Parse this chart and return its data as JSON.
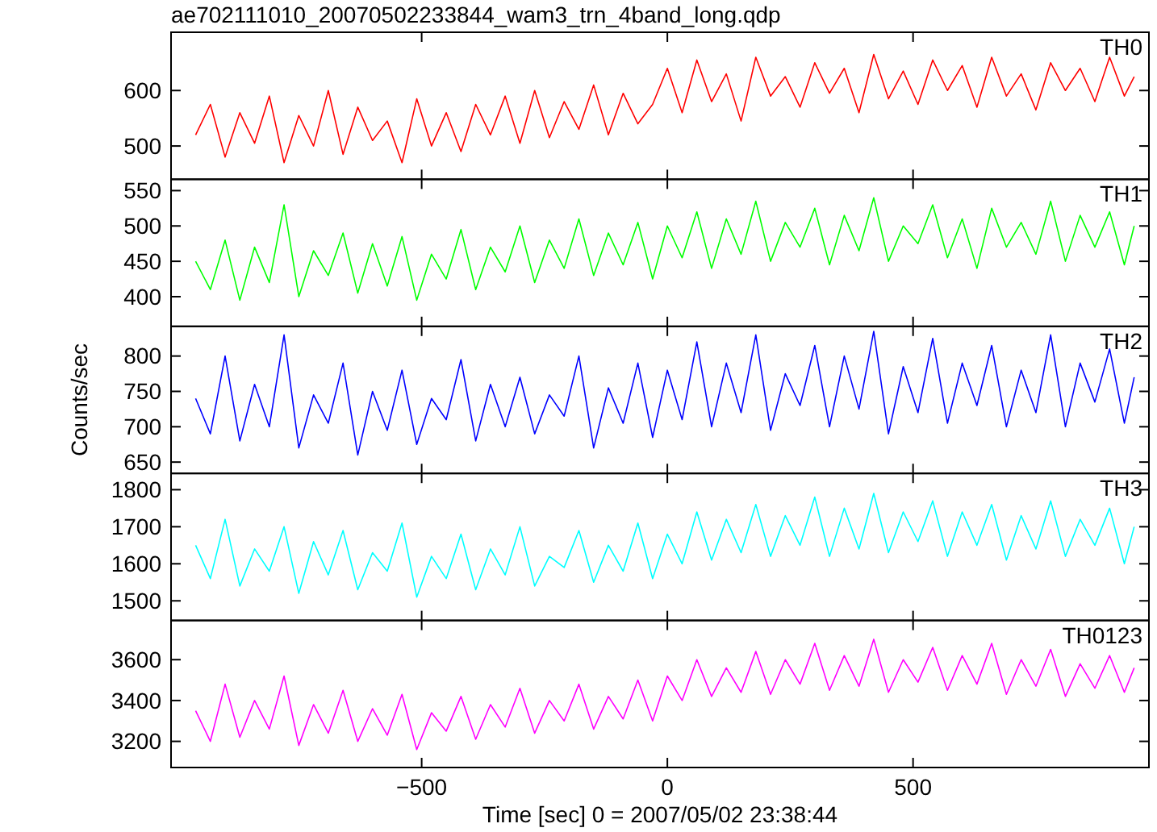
{
  "chart_data": [
    {
      "type": "line",
      "title": "ae702111010_20070502233844_wam3_trn_4band_long.qdp",
      "xlim": [
        -1010,
        980
      ],
      "xticks": [
        -500,
        0,
        500
      ],
      "ylim": [
        440,
        705
      ],
      "yticks": [
        500,
        600
      ],
      "tick_labels": "y",
      "legend": "top right",
      "grid": false,
      "x": [
        -960,
        -930,
        -900,
        -870,
        -840,
        -810,
        -780,
        -750,
        -720,
        -690,
        -660,
        -630,
        -600,
        -570,
        -540,
        -510,
        -480,
        -450,
        -420,
        -390,
        -360,
        -330,
        -300,
        -270,
        -240,
        -210,
        -180,
        -150,
        -120,
        -90,
        -60,
        -30,
        0,
        30,
        60,
        90,
        120,
        150,
        180,
        210,
        240,
        270,
        300,
        330,
        360,
        390,
        420,
        450,
        480,
        510,
        540,
        570,
        600,
        630,
        660,
        690,
        720,
        750,
        780,
        810,
        840,
        870,
        900,
        930,
        950
      ],
      "series": [
        {
          "name": "TH0",
          "color": "#ff0000",
          "values": [
            520,
            575,
            480,
            560,
            505,
            590,
            470,
            555,
            500,
            600,
            485,
            570,
            510,
            545,
            470,
            585,
            500,
            560,
            490,
            575,
            520,
            590,
            505,
            600,
            515,
            580,
            530,
            610,
            520,
            595,
            540,
            575,
            640,
            560,
            655,
            580,
            630,
            545,
            660,
            590,
            625,
            570,
            650,
            595,
            640,
            560,
            665,
            585,
            635,
            575,
            655,
            600,
            645,
            570,
            660,
            590,
            630,
            565,
            650,
            600,
            640,
            580,
            660,
            590,
            625
          ]
        }
      ]
    },
    {
      "type": "line",
      "xlim": [
        -1010,
        980
      ],
      "xticks": [
        -500,
        0,
        500
      ],
      "ylim": [
        358,
        566
      ],
      "yticks": [
        400,
        450,
        500,
        550
      ],
      "tick_labels": "y",
      "legend": "top right",
      "grid": false,
      "x": [
        -960,
        -930,
        -900,
        -870,
        -840,
        -810,
        -780,
        -750,
        -720,
        -690,
        -660,
        -630,
        -600,
        -570,
        -540,
        -510,
        -480,
        -450,
        -420,
        -390,
        -360,
        -330,
        -300,
        -270,
        -240,
        -210,
        -180,
        -150,
        -120,
        -90,
        -60,
        -30,
        0,
        30,
        60,
        90,
        120,
        150,
        180,
        210,
        240,
        270,
        300,
        330,
        360,
        390,
        420,
        450,
        480,
        510,
        540,
        570,
        600,
        630,
        660,
        690,
        720,
        750,
        780,
        810,
        840,
        870,
        900,
        930,
        950
      ],
      "series": [
        {
          "name": "TH1",
          "color": "#00ff00",
          "values": [
            450,
            410,
            480,
            395,
            470,
            420,
            530,
            400,
            465,
            430,
            490,
            405,
            475,
            415,
            485,
            395,
            460,
            425,
            495,
            410,
            470,
            435,
            500,
            420,
            480,
            440,
            510,
            430,
            490,
            445,
            505,
            425,
            500,
            455,
            520,
            440,
            510,
            460,
            535,
            450,
            505,
            470,
            525,
            445,
            515,
            465,
            540,
            450,
            500,
            475,
            530,
            455,
            510,
            440,
            525,
            470,
            505,
            460,
            535,
            450,
            515,
            470,
            520,
            445,
            500
          ]
        }
      ]
    },
    {
      "type": "line",
      "ylabel": "Counts/sec",
      "xlim": [
        -1010,
        980
      ],
      "xticks": [
        -500,
        0,
        500
      ],
      "ylim": [
        634,
        842
      ],
      "yticks": [
        650,
        700,
        750,
        800
      ],
      "tick_labels": "y",
      "legend": "top right",
      "grid": false,
      "x": [
        -960,
        -930,
        -900,
        -870,
        -840,
        -810,
        -780,
        -750,
        -720,
        -690,
        -660,
        -630,
        -600,
        -570,
        -540,
        -510,
        -480,
        -450,
        -420,
        -390,
        -360,
        -330,
        -300,
        -270,
        -240,
        -210,
        -180,
        -150,
        -120,
        -90,
        -60,
        -30,
        0,
        30,
        60,
        90,
        120,
        150,
        180,
        210,
        240,
        270,
        300,
        330,
        360,
        390,
        420,
        450,
        480,
        510,
        540,
        570,
        600,
        630,
        660,
        690,
        720,
        750,
        780,
        810,
        840,
        870,
        900,
        930,
        950
      ],
      "series": [
        {
          "name": "TH2",
          "color": "#0000ff",
          "values": [
            740,
            690,
            800,
            680,
            760,
            700,
            830,
            670,
            745,
            705,
            790,
            660,
            750,
            695,
            780,
            675,
            740,
            710,
            795,
            680,
            760,
            700,
            770,
            690,
            745,
            715,
            800,
            670,
            755,
            705,
            790,
            685,
            780,
            710,
            820,
            700,
            790,
            720,
            830,
            695,
            775,
            730,
            815,
            700,
            800,
            725,
            835,
            690,
            785,
            720,
            825,
            705,
            790,
            730,
            815,
            700,
            780,
            720,
            830,
            700,
            790,
            735,
            810,
            705,
            770
          ]
        }
      ]
    },
    {
      "type": "line",
      "xlim": [
        -1010,
        980
      ],
      "xticks": [
        -500,
        0,
        500
      ],
      "ylim": [
        1447,
        1844
      ],
      "yticks": [
        1500,
        1600,
        1700,
        1800
      ],
      "tick_labels": "y",
      "legend": "top right",
      "grid": false,
      "x": [
        -960,
        -930,
        -900,
        -870,
        -840,
        -810,
        -780,
        -750,
        -720,
        -690,
        -660,
        -630,
        -600,
        -570,
        -540,
        -510,
        -480,
        -450,
        -420,
        -390,
        -360,
        -330,
        -300,
        -270,
        -240,
        -210,
        -180,
        -150,
        -120,
        -90,
        -60,
        -30,
        0,
        30,
        60,
        90,
        120,
        150,
        180,
        210,
        240,
        270,
        300,
        330,
        360,
        390,
        420,
        450,
        480,
        510,
        540,
        570,
        600,
        630,
        660,
        690,
        720,
        750,
        780,
        810,
        840,
        870,
        900,
        930,
        950
      ],
      "series": [
        {
          "name": "TH3",
          "color": "#00ffff",
          "values": [
            1650,
            1560,
            1720,
            1540,
            1640,
            1580,
            1700,
            1520,
            1660,
            1570,
            1690,
            1530,
            1630,
            1580,
            1710,
            1510,
            1620,
            1560,
            1680,
            1530,
            1640,
            1570,
            1700,
            1540,
            1620,
            1590,
            1690,
            1550,
            1650,
            1580,
            1710,
            1560,
            1680,
            1600,
            1740,
            1610,
            1720,
            1630,
            1760,
            1620,
            1730,
            1650,
            1780,
            1620,
            1750,
            1640,
            1790,
            1630,
            1740,
            1660,
            1770,
            1620,
            1740,
            1650,
            1760,
            1610,
            1730,
            1640,
            1770,
            1620,
            1720,
            1650,
            1750,
            1600,
            1700
          ]
        }
      ]
    },
    {
      "type": "line",
      "xlabel": "Time [sec] 0 = 2007/05/02 23:38:44",
      "xlim": [
        -1010,
        980
      ],
      "xticks": [
        {
          "value": -500,
          "label": "−500"
        },
        0,
        500
      ],
      "ylim": [
        3072,
        3792
      ],
      "yticks": [
        3200,
        3400,
        3600
      ],
      "legend": "top right",
      "grid": false,
      "x": [
        -960,
        -930,
        -900,
        -870,
        -840,
        -810,
        -780,
        -750,
        -720,
        -690,
        -660,
        -630,
        -600,
        -570,
        -540,
        -510,
        -480,
        -450,
        -420,
        -390,
        -360,
        -330,
        -300,
        -270,
        -240,
        -210,
        -180,
        -150,
        -120,
        -90,
        -60,
        -30,
        0,
        30,
        60,
        90,
        120,
        150,
        180,
        210,
        240,
        270,
        300,
        330,
        360,
        390,
        420,
        450,
        480,
        510,
        540,
        570,
        600,
        630,
        660,
        690,
        720,
        750,
        780,
        810,
        840,
        870,
        900,
        930,
        950
      ],
      "series": [
        {
          "name": "TH0123",
          "color": "#ff00ff",
          "values": [
            3350,
            3200,
            3480,
            3220,
            3400,
            3260,
            3520,
            3180,
            3380,
            3240,
            3450,
            3200,
            3360,
            3230,
            3430,
            3160,
            3340,
            3250,
            3420,
            3210,
            3380,
            3270,
            3460,
            3240,
            3400,
            3300,
            3480,
            3260,
            3420,
            3310,
            3500,
            3300,
            3520,
            3400,
            3600,
            3420,
            3560,
            3440,
            3640,
            3430,
            3600,
            3480,
            3680,
            3450,
            3620,
            3470,
            3700,
            3440,
            3600,
            3490,
            3660,
            3450,
            3620,
            3480,
            3680,
            3430,
            3600,
            3470,
            3650,
            3420,
            3580,
            3460,
            3620,
            3440,
            3560
          ]
        }
      ]
    }
  ]
}
